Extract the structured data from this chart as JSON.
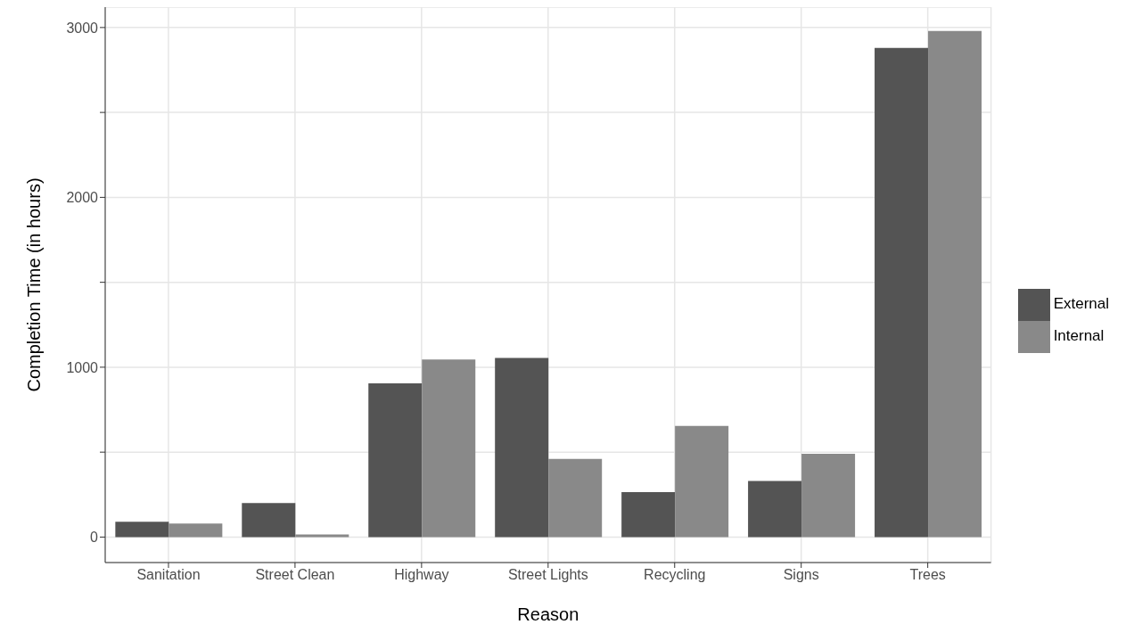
{
  "chart_data": {
    "type": "bar",
    "xlabel": "Reason",
    "ylabel": "Completion Time (in hours)",
    "categories": [
      "Sanitation",
      "Street Clean",
      "Highway",
      "Street Lights",
      "Recycling",
      "Signs",
      "Trees"
    ],
    "series": [
      {
        "name": "External",
        "color": "#545454",
        "values": [
          90,
          200,
          905,
          1055,
          265,
          330,
          2880
        ]
      },
      {
        "name": "Internal",
        "color": "#898989",
        "values": [
          80,
          15,
          1045,
          460,
          655,
          490,
          2980
        ]
      }
    ],
    "ylim": [
      -150,
      3120
    ],
    "yticks": [
      0,
      {
        "value": 500,
        "label": null
      },
      1000,
      {
        "value": 1500,
        "label": null
      },
      2000,
      {
        "value": 2500,
        "label": null
      },
      3000
    ],
    "grid": true,
    "legend": "right"
  }
}
